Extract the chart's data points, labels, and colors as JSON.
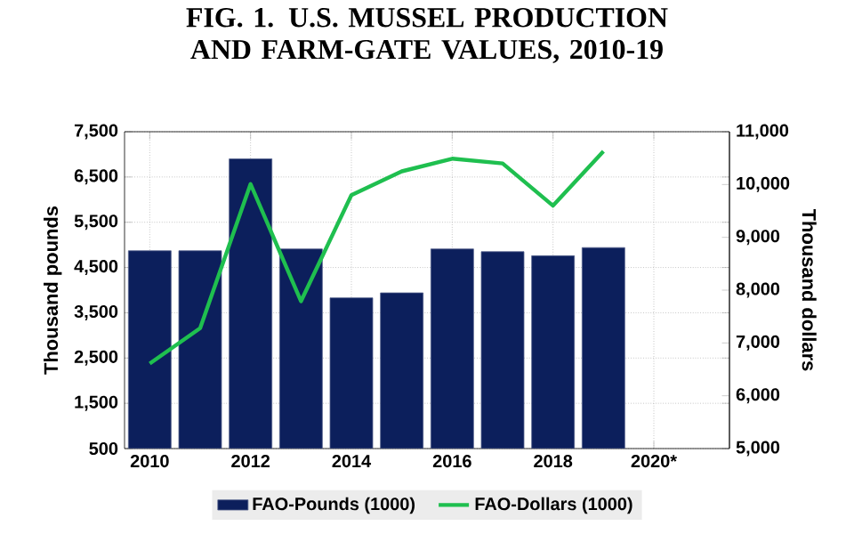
{
  "chart_data": {
    "type": "bar",
    "title": "FIG. 1. U.S. MUSSEL PRODUCTION AND FARM-GATE VALUES, 2010-19",
    "categories": [
      "2010",
      null,
      "2012",
      null,
      "2014",
      null,
      "2016",
      null,
      "2018",
      null,
      "2020*",
      null
    ],
    "series": [
      {
        "name": "FAO-Pounds (1000)",
        "color": "#0c1f5c",
        "values": [
          4870,
          4870,
          6900,
          4910,
          3830,
          3940,
          4910,
          4850,
          4760,
          4940,
          null,
          null
        ]
      },
      {
        "name": "FAO-Dollars (1000)",
        "type": "line",
        "axis": "y2",
        "color": "#1fbf4f",
        "values": [
          6610,
          7280,
          10010,
          7790,
          9800,
          10250,
          10490,
          10400,
          9600,
          10630,
          null,
          null
        ]
      }
    ],
    "ylabel": "Thousand pounds",
    "y2label": "Thousand dollars",
    "ylim": [
      500,
      7500
    ],
    "yticks": [
      {
        "value": 500,
        "label": "500"
      },
      {
        "value": 1500,
        "label": "1,500"
      },
      {
        "value": 2500,
        "label": "2,500"
      },
      {
        "value": 3500,
        "label": "3,500"
      },
      {
        "value": 4500,
        "label": "4,500"
      },
      {
        "value": 5500,
        "label": "5,500"
      },
      {
        "value": 6500,
        "label": "6,500"
      },
      {
        "value": 7500,
        "label": "7,500"
      }
    ],
    "y2lim": [
      5000,
      11000
    ],
    "y2ticks": [
      {
        "value": 5000,
        "label": "5,000"
      },
      {
        "value": 6000,
        "label": "6,000"
      },
      {
        "value": 7000,
        "label": "7,000"
      },
      {
        "value": 8000,
        "label": "8,000"
      },
      {
        "value": 9000,
        "label": "9,000"
      },
      {
        "value": 10000,
        "label": "10,000"
      },
      {
        "value": 11000,
        "label": "11,000"
      }
    ],
    "grid": true,
    "legend": "bottom",
    "marker": "none"
  }
}
